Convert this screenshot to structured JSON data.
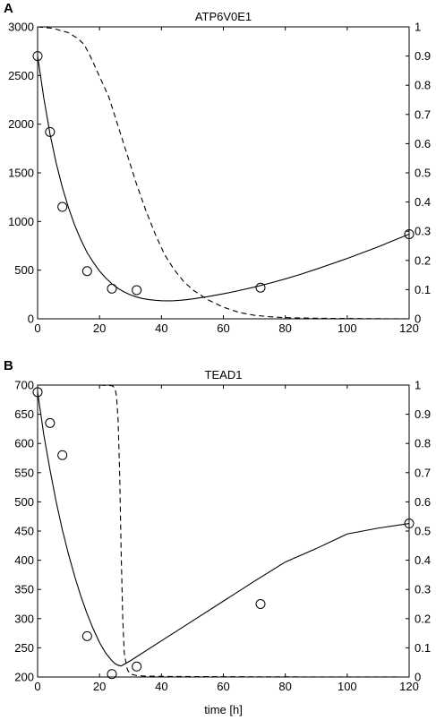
{
  "chart_data": [
    {
      "type": "line",
      "panel_label": "A",
      "title": "ATP6V0E1",
      "xlabel": "",
      "xlim": [
        0,
        120
      ],
      "ylim_left": [
        0,
        3000
      ],
      "ylim_right": [
        0,
        1
      ],
      "x_ticks": [
        0,
        20,
        40,
        60,
        80,
        100,
        120
      ],
      "y_ticks_left": [
        0,
        500,
        1000,
        1500,
        2000,
        2500,
        3000
      ],
      "y_ticks_right": [
        0,
        0.1,
        0.2,
        0.3,
        0.4,
        0.5,
        0.6,
        0.7,
        0.8,
        0.9,
        1
      ],
      "series": [
        {
          "style": "markers-circle",
          "axis": "left",
          "x": [
            0,
            4,
            8,
            16,
            24,
            32,
            72,
            120
          ],
          "y": [
            2700,
            1920,
            1150,
            490,
            310,
            295,
            320,
            870
          ]
        },
        {
          "style": "solid",
          "axis": "left",
          "x": [
            0,
            2,
            4,
            6,
            8,
            10,
            12,
            14,
            16,
            18,
            20,
            22,
            24,
            26,
            28,
            30,
            32,
            34,
            36,
            38,
            40,
            42,
            44,
            46,
            48,
            50,
            55,
            60,
            65,
            70,
            75,
            80,
            85,
            90,
            95,
            100,
            105,
            110,
            115,
            120
          ],
          "y": [
            2700,
            2270,
            1900,
            1600,
            1350,
            1140,
            960,
            810,
            680,
            580,
            490,
            420,
            360,
            312,
            275,
            246,
            224,
            208,
            197,
            190,
            186,
            185,
            186,
            190,
            196,
            204,
            228,
            257,
            290,
            326,
            366,
            410,
            458,
            510,
            565,
            620,
            680,
            740,
            805,
            870
          ]
        },
        {
          "style": "dashed",
          "axis": "right",
          "x": [
            0,
            5,
            10,
            13,
            15,
            17,
            20,
            23,
            26,
            29,
            32,
            35,
            38,
            41,
            44,
            47,
            50,
            55,
            60,
            65,
            70,
            75,
            80,
            90,
            100,
            110,
            120
          ],
          "y": [
            1.0,
            0.995,
            0.98,
            0.96,
            0.94,
            0.9,
            0.83,
            0.76,
            0.66,
            0.56,
            0.46,
            0.37,
            0.29,
            0.22,
            0.17,
            0.13,
            0.1,
            0.065,
            0.04,
            0.022,
            0.012,
            0.007,
            0.004,
            0.002,
            0.001,
            0.0005,
            0.0
          ]
        }
      ]
    },
    {
      "type": "line",
      "panel_label": "B",
      "title": "TEAD1",
      "xlabel": "time [h]",
      "xlim": [
        0,
        120
      ],
      "ylim_left": [
        200,
        700
      ],
      "ylim_right": [
        0,
        1
      ],
      "x_ticks": [
        0,
        20,
        40,
        60,
        80,
        100,
        120
      ],
      "y_ticks_left": [
        200,
        250,
        300,
        350,
        400,
        450,
        500,
        550,
        600,
        650,
        700
      ],
      "y_ticks_right": [
        0,
        0.1,
        0.2,
        0.3,
        0.4,
        0.5,
        0.6,
        0.7,
        0.8,
        0.9,
        1
      ],
      "series": [
        {
          "style": "markers-circle",
          "axis": "left",
          "x": [
            0,
            4,
            8,
            16,
            24,
            32,
            72,
            120
          ],
          "y": [
            688,
            635,
            580,
            270,
            205,
            218,
            325,
            463
          ]
        },
        {
          "style": "solid",
          "axis": "left",
          "x": [
            0,
            2,
            4,
            6,
            8,
            10,
            12,
            14,
            16,
            18,
            20,
            22,
            24,
            25,
            26,
            27,
            28,
            30,
            40,
            50,
            60,
            70,
            80,
            90,
            100,
            110,
            120
          ],
          "y": [
            688,
            615,
            555,
            500,
            452,
            410,
            372,
            338,
            308,
            282,
            259,
            241,
            228,
            223,
            220,
            219,
            222,
            228,
            262,
            296,
            330,
            364,
            397,
            420,
            445,
            455,
            463
          ]
        },
        {
          "style": "dashed",
          "axis": "right",
          "x": [
            0,
            10,
            20,
            24,
            25,
            25.5,
            26,
            26.5,
            27,
            27.5,
            28,
            29,
            30,
            32,
            35,
            40,
            60,
            80,
            100,
            120
          ],
          "y": [
            1.0,
            1.0,
            1.0,
            0.998,
            0.99,
            0.96,
            0.88,
            0.7,
            0.42,
            0.2,
            0.08,
            0.025,
            0.01,
            0.005,
            0.003,
            0.002,
            0.001,
            0.0005,
            0.0002,
            0.0
          ]
        }
      ]
    }
  ]
}
